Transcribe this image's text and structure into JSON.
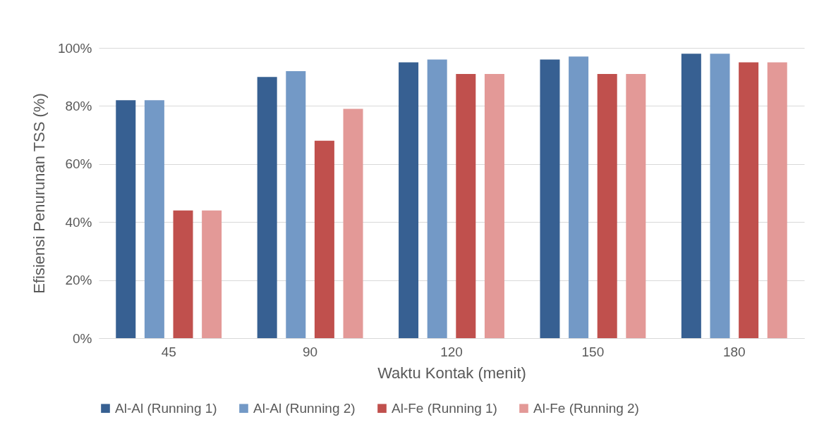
{
  "chart_data": {
    "type": "bar",
    "xlabel": "Waktu Kontak (menit)",
    "ylabel": "Efisiensi Penurunan TSS (%)",
    "categories": [
      "45",
      "90",
      "120",
      "150",
      "180"
    ],
    "series": [
      {
        "name": "Al-Al (Running 1)",
        "color": "#376092",
        "values": [
          82,
          90,
          95,
          96,
          98
        ]
      },
      {
        "name": "Al-Al (Running 2)",
        "color": "#7399c6",
        "values": [
          82,
          92,
          96,
          97,
          98
        ]
      },
      {
        "name": "Al-Fe (Running 1)",
        "color": "#c0504d",
        "values": [
          44,
          68,
          91,
          91,
          95
        ]
      },
      {
        "name": "Al-Fe (Running 2)",
        "color": "#e39997",
        "values": [
          44,
          79,
          91,
          91,
          95
        ]
      }
    ],
    "ylim": [
      0,
      100
    ],
    "yticks": [
      {
        "value": 0,
        "label": "0%"
      },
      {
        "value": 20,
        "label": "20%"
      },
      {
        "value": 40,
        "label": "40%"
      },
      {
        "value": 60,
        "label": "60%"
      },
      {
        "value": 80,
        "label": "80%"
      },
      {
        "value": 100,
        "label": "100%"
      }
    ],
    "grid": "y",
    "legend": "bottom"
  }
}
